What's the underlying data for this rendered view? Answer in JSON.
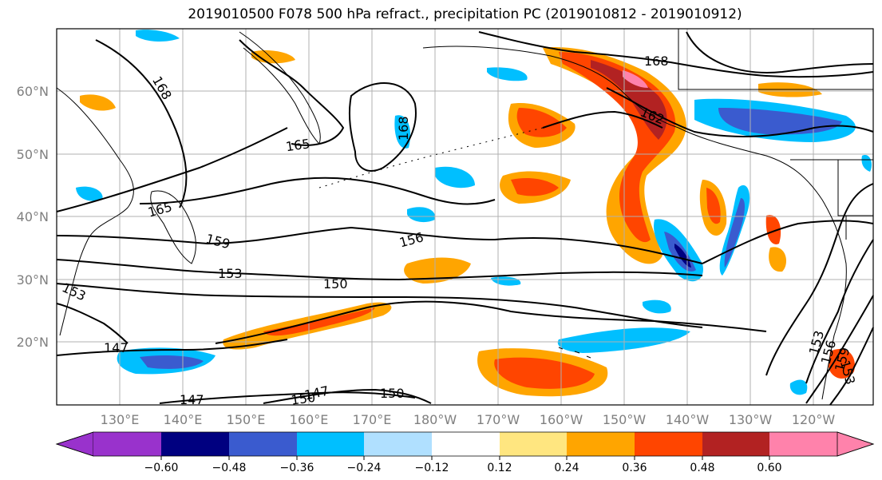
{
  "title": "2019010500 F078 500 hPa refract., precipitation PC (2019010812 - 2019010912)",
  "lat_labels": [
    "60°N",
    "50°N",
    "40°N",
    "30°N",
    "20°N"
  ],
  "lon_labels": [
    "130°E",
    "140°E",
    "150°E",
    "160°E",
    "170°E",
    "180°W",
    "170°W",
    "160°W",
    "150°W",
    "140°W",
    "130°W",
    "120°W"
  ],
  "colorbar": {
    "ticks": [
      "−0.60",
      "−0.48",
      "−0.36",
      "−0.24",
      "−0.12",
      "0.12",
      "0.24",
      "0.36",
      "0.48",
      "0.60"
    ],
    "colors": [
      "#9932cc",
      "#000080",
      "#3a5bcf",
      "#00bfff",
      "#b0e0ff",
      "#ffffff",
      "#ffe680",
      "#ffa500",
      "#ff4500",
      "#b22222",
      "#ff82ab"
    ]
  },
  "contour_labels": [
    "168",
    "168",
    "168",
    "165",
    "165",
    "162",
    "159",
    "156",
    "153",
    "153",
    "150",
    "150",
    "147",
    "147",
    "147",
    "150",
    "153",
    "156",
    "159",
    "153"
  ],
  "palette": {
    "neg_light": "#b0e0ff",
    "neg_mid": "#00bfff",
    "neg_dark": "#3a5bcf",
    "neg_vdark": "#000080",
    "pos_light": "#ffe680",
    "pos_mid": "#ffa500",
    "pos_dark": "#ff4500",
    "pos_vdark": "#b22222",
    "pos_max": "#ff82ab"
  }
}
